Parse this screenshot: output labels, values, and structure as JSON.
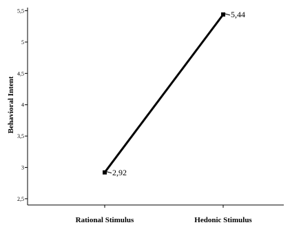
{
  "chart_data": {
    "type": "line",
    "categories": [
      "Rational Stimulus",
      "Hedonic Stimulus"
    ],
    "series": [
      {
        "values": [
          2.92,
          5.44
        ],
        "data_labels": [
          "2,92",
          "5,44"
        ]
      }
    ],
    "ylabel": "Behavioral Intent",
    "ylim": [
      2.4,
      5.55
    ],
    "y_ticks": [
      2.5,
      3,
      3.5,
      4,
      4.5,
      5,
      5.5
    ],
    "y_tick_labels": [
      "2,5",
      "3",
      "3,5",
      "4",
      "4,5",
      "5",
      "5,5"
    ],
    "grid": false,
    "colors": {
      "line": "#000000",
      "marker": "#000000",
      "axis": "#000000"
    }
  }
}
